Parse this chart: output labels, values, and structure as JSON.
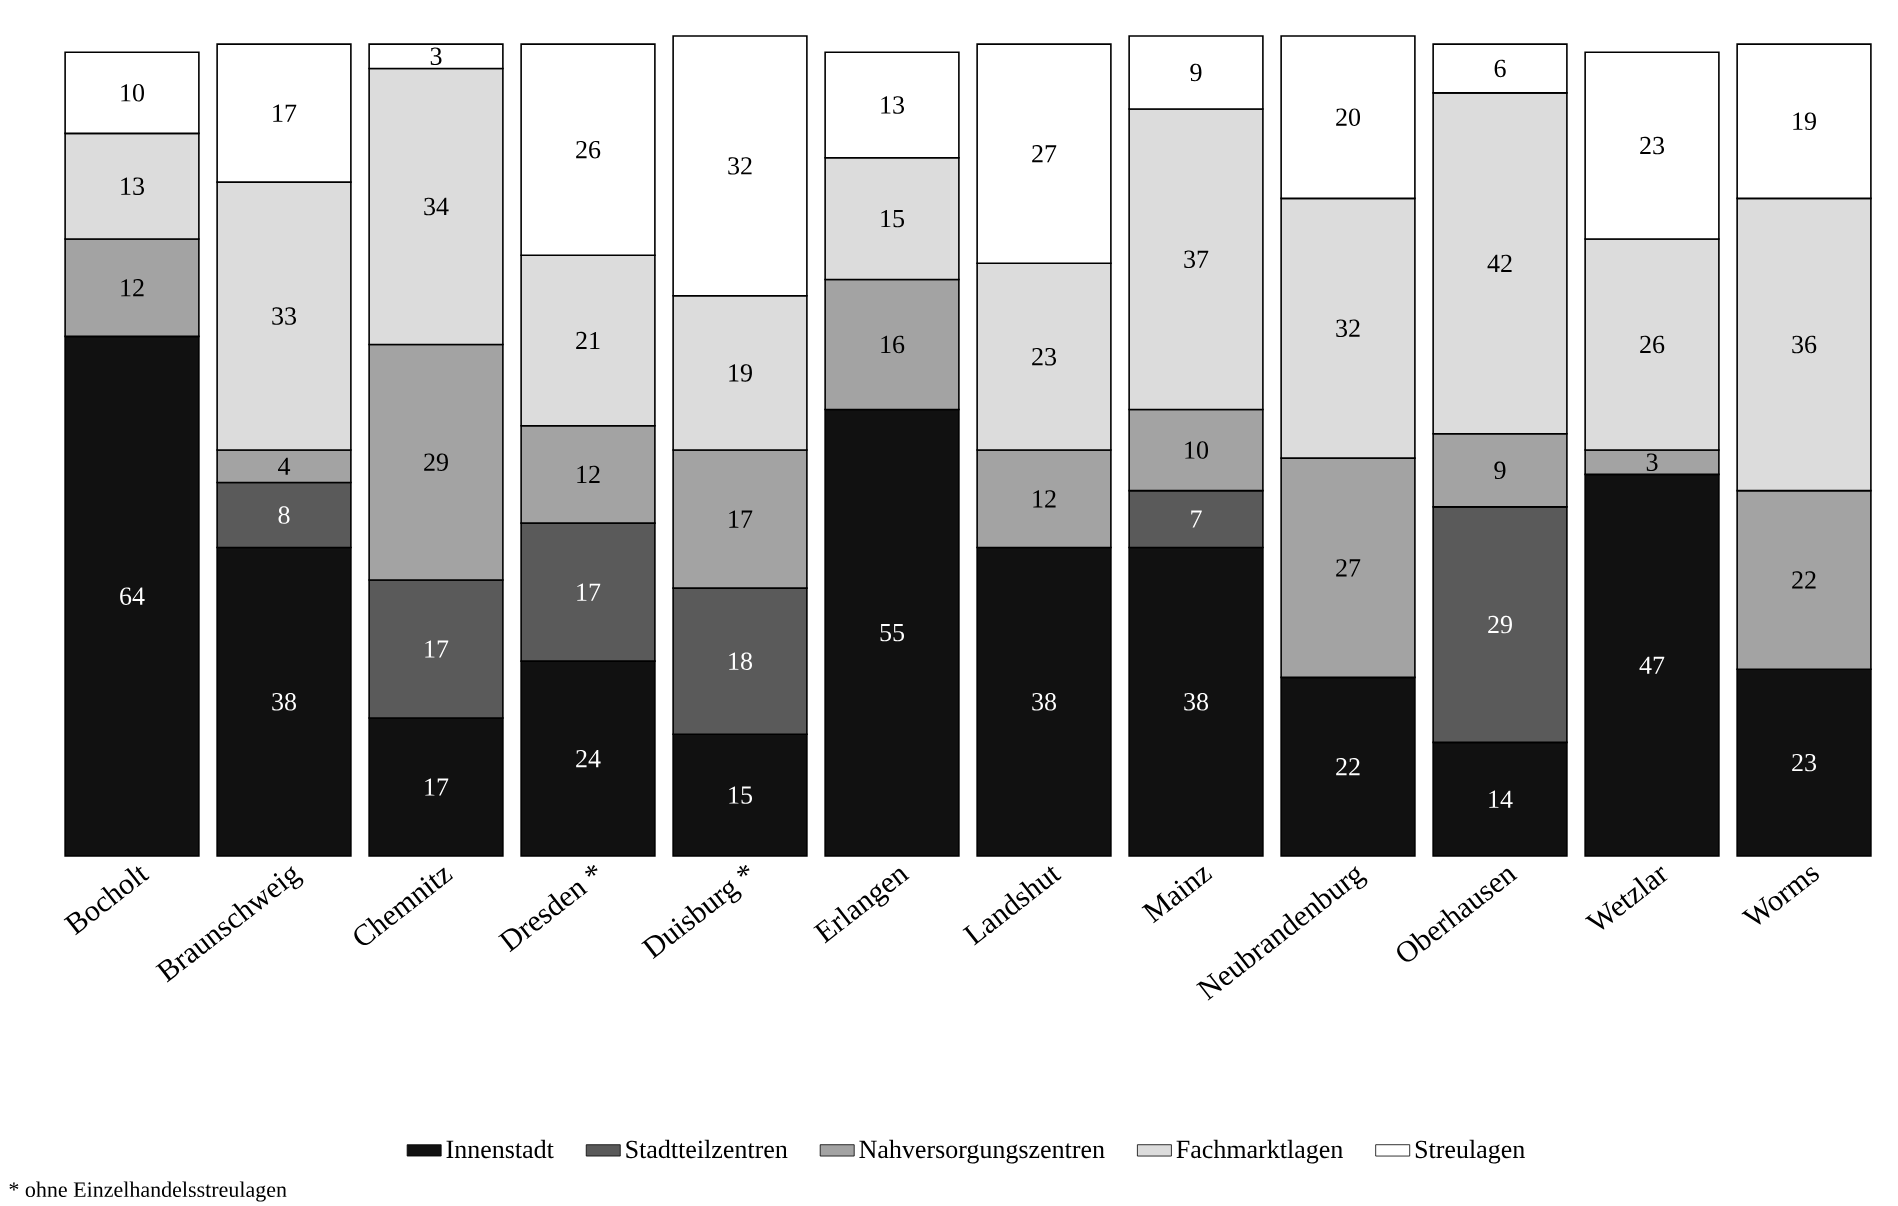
{
  "chart_data": {
    "type": "bar",
    "stacked": true,
    "data_labels": true,
    "legend": "bottom",
    "categories": [
      "Bocholt",
      "Braunschweig",
      "Chemnitz",
      "Dresden *",
      "Duisburg *",
      "Erlangen",
      "Landshut",
      "Mainz",
      "Neubrandenburg",
      "Oberhausen",
      "Wetzlar",
      "Worms"
    ],
    "series": [
      {
        "name": "Innenstadt",
        "color": "#111111",
        "values": [
          64,
          38,
          17,
          24,
          15,
          55,
          38,
          38,
          22,
          14,
          47,
          23
        ]
      },
      {
        "name": "Stadtteilzentren",
        "color": "#5a5a5a",
        "values": [
          null,
          8,
          17,
          17,
          18,
          null,
          null,
          7,
          null,
          29,
          null,
          null
        ]
      },
      {
        "name": "Nahversorgungszentren",
        "color": "#a3a3a3",
        "values": [
          12,
          4,
          29,
          12,
          17,
          16,
          12,
          10,
          27,
          9,
          3,
          22
        ]
      },
      {
        "name": "Fachmarktlagen",
        "color": "#dcdcdc",
        "values": [
          13,
          33,
          34,
          21,
          19,
          15,
          23,
          37,
          32,
          42,
          26,
          36
        ]
      },
      {
        "name": "Streulagen",
        "color": "#ffffff",
        "values": [
          10,
          17,
          3,
          26,
          32,
          13,
          27,
          9,
          20,
          6,
          23,
          19
        ]
      }
    ],
    "annotations": [
      "* ohne Einzelhandelsstreulagen"
    ]
  }
}
